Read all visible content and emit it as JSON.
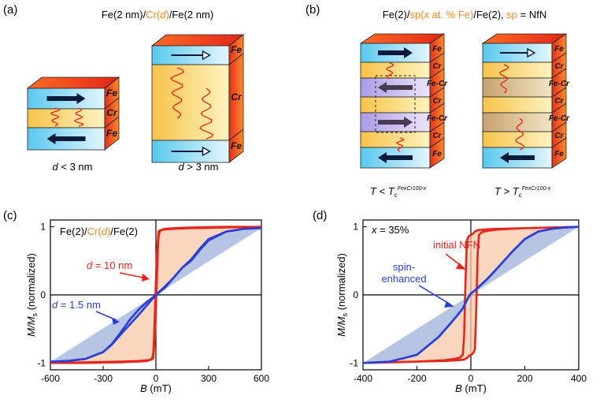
{
  "panels": {
    "a": {
      "label": "(a)",
      "title_parts": [
        "Fe(2 nm)/",
        "Cr(",
        "d",
        ")",
        "/Fe(2 nm)"
      ],
      "stack_small": {
        "layers": [
          "Fe",
          "Cr",
          "Fe"
        ],
        "caption_var": "d",
        "caption_rest": " < 3 nm"
      },
      "stack_large": {
        "layers": [
          "Fe",
          "Cr",
          "Fe"
        ],
        "caption_var": "d",
        "caption_rest": " > 3 nm"
      }
    },
    "b": {
      "label": "(b)",
      "title_parts": [
        "Fe(2)/",
        "sp(",
        "x",
        " at. % Fe)",
        "/Fe(2), ",
        "sp",
        " = NfN"
      ],
      "stack_left": {
        "layers": [
          "Fe",
          "Cr",
          "Fe-Cr",
          "Cr",
          "Fe-Cr",
          "Cr",
          "Fe"
        ]
      },
      "stack_right": {
        "layers": [
          "Fe",
          "Cr",
          "Fe-Cr",
          "Cr",
          "Fe-Cr",
          "Cr",
          "Fe"
        ]
      },
      "caption_left": {
        "var": "T",
        "op": " < ",
        "tc": "T",
        "sub": "c",
        "sup": "FexCr100-x"
      },
      "caption_right": {
        "var": "T",
        "op": " > ",
        "tc": "T",
        "sub": "c",
        "sup": "FexCr100-x"
      }
    }
  },
  "chart_data": [
    {
      "type": "line",
      "panel_label": "(c)",
      "legend_parts": [
        "Fe(2)/",
        "Cr(",
        "d",
        ")",
        "/Fe(2)"
      ],
      "xlabel_var": "B",
      "xlabel_unit": " (mT)",
      "ylabel_var": "M/M",
      "ylabel_sub": "s",
      "ylabel_rest": " (normalized)",
      "xlim": [
        -600,
        600
      ],
      "ylim": [
        -1.1,
        1.1
      ],
      "xticks": [
        -600,
        -300,
        0,
        300,
        600
      ],
      "yticks": [
        -1,
        0,
        1
      ],
      "series": [
        {
          "name": "d = 10 nm",
          "label_var": "d",
          "label_rest": " = 10 nm",
          "color": "#e8241b",
          "branch_down": {
            "x": [
              600,
              400,
              200,
              100,
              50,
              25,
              15,
              5,
              0,
              -5,
              -10,
              -15,
              -20,
              -30,
              -50,
              -100,
              -200,
              -400,
              -600
            ],
            "y": [
              1.0,
              0.99,
              0.98,
              0.97,
              0.96,
              0.95,
              0.93,
              0.6,
              0.2,
              -0.2,
              -0.6,
              -0.85,
              -0.92,
              -0.95,
              -0.97,
              -0.98,
              -0.99,
              -1.0,
              -1.0
            ]
          },
          "branch_up": {
            "x": [
              -600,
              -400,
              -200,
              -100,
              -50,
              -25,
              -15,
              -5,
              0,
              5,
              10,
              15,
              20,
              30,
              50,
              100,
              200,
              400,
              600
            ],
            "y": [
              -1.0,
              -0.99,
              -0.98,
              -0.97,
              -0.96,
              -0.95,
              -0.93,
              -0.6,
              -0.2,
              0.2,
              0.6,
              0.85,
              0.92,
              0.95,
              0.97,
              0.98,
              0.99,
              1.0,
              1.0
            ]
          }
        },
        {
          "name": "d = 1.5 nm",
          "label_var": "d",
          "label_rest": " = 1.5 nm",
          "color": "#2a3fd6",
          "branch_down": {
            "x": [
              600,
              500,
              400,
              300,
              250,
              200,
              150,
              100,
              50,
              0,
              -50,
              -100,
              -150,
              -200,
              -250,
              -300,
              -400,
              -500,
              -600
            ],
            "y": [
              0.98,
              0.97,
              0.93,
              0.8,
              0.66,
              0.5,
              0.4,
              0.25,
              0.12,
              0.0,
              -0.1,
              -0.22,
              -0.37,
              -0.55,
              -0.72,
              -0.84,
              -0.94,
              -0.97,
              -0.98
            ]
          },
          "branch_up": {
            "x": [
              -600,
              -500,
              -400,
              -300,
              -250,
              -200,
              -150,
              -100,
              -50,
              0,
              50,
              100,
              150,
              200,
              250,
              300,
              400,
              500,
              600
            ],
            "y": [
              -0.98,
              -0.97,
              -0.94,
              -0.84,
              -0.73,
              -0.58,
              -0.44,
              -0.3,
              -0.15,
              0.0,
              0.1,
              0.25,
              0.4,
              0.52,
              0.68,
              0.82,
              0.93,
              0.97,
              0.98
            ]
          }
        }
      ]
    },
    {
      "type": "line",
      "panel_label": "(d)",
      "legend_parts": [
        "x",
        " = 35%"
      ],
      "xlabel_var": "B",
      "xlabel_unit": " (mT)",
      "ylabel_var": "M/M",
      "ylabel_sub": "s",
      "ylabel_rest": " (normalized)",
      "xlim": [
        -400,
        400
      ],
      "ylim": [
        -1.1,
        1.1
      ],
      "xticks": [
        -400,
        -200,
        0,
        200,
        400
      ],
      "yticks": [
        -1,
        0,
        1
      ],
      "series": [
        {
          "name": "initial NFN",
          "color": "#e8241b",
          "branch_down": {
            "x": [
              400,
              300,
              200,
              100,
              50,
              25,
              15,
              8,
              0,
              -8,
              -15,
              -20,
              -25,
              -30,
              -40,
              -60,
              -100,
              -200,
              -300,
              -400
            ],
            "y": [
              1.0,
              0.99,
              0.98,
              0.97,
              0.96,
              0.95,
              0.93,
              0.9,
              0.88,
              0.86,
              0.8,
              0.2,
              -0.6,
              -0.88,
              -0.92,
              -0.94,
              -0.96,
              -0.98,
              -0.99,
              -1.0
            ]
          },
          "branch_up": {
            "x": [
              -400,
              -300,
              -200,
              -100,
              -50,
              -25,
              -15,
              -8,
              0,
              8,
              15,
              20,
              25,
              30,
              40,
              60,
              100,
              200,
              300,
              400
            ],
            "y": [
              -1.0,
              -0.99,
              -0.98,
              -0.97,
              -0.96,
              -0.95,
              -0.93,
              -0.9,
              -0.88,
              -0.86,
              -0.8,
              -0.2,
              0.6,
              0.88,
              0.92,
              0.94,
              0.96,
              0.98,
              0.99,
              1.0
            ]
          }
        },
        {
          "name": "spin-enhanced",
          "label_lines": [
            "spin-",
            "enhanced"
          ],
          "color": "#2a3fd6",
          "branch_down": {
            "x": [
              400,
              350,
              300,
              250,
              200,
              150,
              100,
              60,
              30,
              10,
              0,
              -10,
              -20,
              -30,
              -50,
              -80,
              -120,
              -200,
              -300,
              -400
            ],
            "y": [
              1.0,
              0.99,
              0.97,
              0.93,
              0.82,
              0.62,
              0.4,
              0.23,
              0.12,
              0.05,
              0.02,
              -0.04,
              -0.12,
              -0.2,
              -0.3,
              -0.44,
              -0.62,
              -0.88,
              -0.98,
              -1.0
            ]
          },
          "branch_up": {
            "x": [
              -400,
              -300,
              -200,
              -120,
              -80,
              -50,
              -30,
              -20,
              -10,
              0,
              10,
              30,
              60,
              100,
              150,
              200,
              250,
              300,
              350,
              400
            ],
            "y": [
              -1.0,
              -0.98,
              -0.88,
              -0.62,
              -0.44,
              -0.3,
              -0.2,
              -0.12,
              -0.04,
              0.02,
              0.05,
              0.12,
              0.23,
              0.4,
              0.62,
              0.82,
              0.93,
              0.97,
              0.99,
              1.0
            ]
          }
        }
      ]
    }
  ]
}
